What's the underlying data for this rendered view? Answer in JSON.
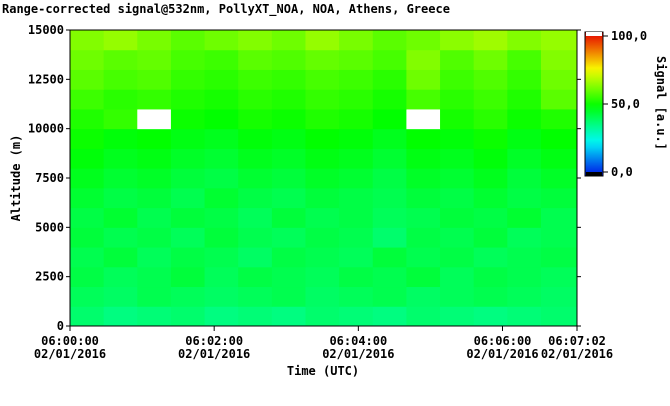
{
  "chart_data": {
    "type": "heatmap",
    "title": "Range-corrected signal@532nm, PollyXT_NOA, NOA, Athens, Greece",
    "xlabel": "Time (UTC)",
    "ylabel": "Altitude (m)",
    "zlabel": "Signal [a.u.]",
    "x": [
      "06:00:00",
      "06:00:28",
      "06:00:56",
      "06:01:24",
      "06:01:52",
      "06:02:20",
      "06:02:48",
      "06:03:16",
      "06:03:44",
      "06:04:12",
      "06:04:40",
      "06:05:08",
      "06:05:36",
      "06:06:04",
      "06:06:32"
    ],
    "xlim": [
      "06:00:00",
      "06:07:02"
    ],
    "xticks": [
      "06:00:00",
      "06:02:00",
      "06:04:00",
      "06:06:00",
      "06:07:02"
    ],
    "xtick_dates": [
      "02/01/2016",
      "02/01/2016",
      "02/01/2016",
      "02/01/2016",
      "02/01/2016"
    ],
    "y": [
      0,
      1000,
      2000,
      3000,
      4000,
      5000,
      6000,
      7000,
      8000,
      9000,
      10000,
      11000,
      12000,
      13000,
      14000
    ],
    "ylim": [
      0,
      15000
    ],
    "yticks": [
      0,
      2500,
      5000,
      7500,
      10000,
      12500,
      15000
    ],
    "zlim": [
      0,
      100
    ],
    "zticks": [
      {
        "value": 0,
        "label": "0,0"
      },
      {
        "value": 50,
        "label": "50,0"
      },
      {
        "value": 100,
        "label": "100,0"
      }
    ],
    "z": [
      [
        38,
        36,
        37,
        38,
        36,
        37,
        36,
        38,
        37,
        36,
        38,
        37,
        36,
        37,
        38
      ],
      [
        40,
        39,
        41,
        40,
        39,
        40,
        41,
        39,
        40,
        41,
        39,
        40,
        41,
        40,
        39
      ],
      [
        42,
        40,
        41,
        43,
        40,
        42,
        41,
        40,
        42,
        41,
        43,
        40,
        42,
        41,
        40
      ],
      [
        41,
        43,
        40,
        42,
        41,
        39,
        42,
        41,
        40,
        43,
        41,
        42,
        40,
        41,
        42
      ],
      [
        43,
        41,
        42,
        40,
        43,
        41,
        40,
        42,
        41,
        38,
        42,
        41,
        43,
        40,
        41
      ],
      [
        42,
        44,
        41,
        43,
        42,
        40,
        43,
        41,
        42,
        40,
        41,
        43,
        42,
        44,
        41
      ],
      [
        44,
        42,
        43,
        41,
        44,
        42,
        41,
        43,
        42,
        41,
        43,
        42,
        44,
        42,
        43
      ],
      [
        46,
        44,
        45,
        43,
        42,
        44,
        43,
        45,
        44,
        42,
        45,
        44,
        46,
        43,
        45
      ],
      [
        48,
        46,
        47,
        45,
        44,
        46,
        45,
        47,
        46,
        44,
        47,
        46,
        48,
        45,
        47
      ],
      [
        50,
        48,
        49,
        47,
        46,
        48,
        47,
        49,
        48,
        46,
        49,
        48,
        50,
        47,
        49
      ],
      [
        52,
        54,
        105,
        50,
        49,
        51,
        50,
        52,
        51,
        49,
        105,
        51,
        53,
        50,
        52
      ],
      [
        55,
        53,
        54,
        52,
        51,
        53,
        52,
        54,
        53,
        51,
        56,
        53,
        55,
        52,
        58
      ],
      [
        58,
        56,
        57,
        54,
        53,
        55,
        54,
        56,
        55,
        53,
        60,
        55,
        57,
        54,
        60
      ],
      [
        60,
        58,
        59,
        56,
        55,
        58,
        57,
        59,
        58,
        56,
        62,
        57,
        60,
        56,
        62
      ],
      [
        62,
        64,
        61,
        58,
        60,
        62,
        60,
        64,
        61,
        58,
        60,
        63,
        65,
        62,
        64
      ]
    ]
  }
}
